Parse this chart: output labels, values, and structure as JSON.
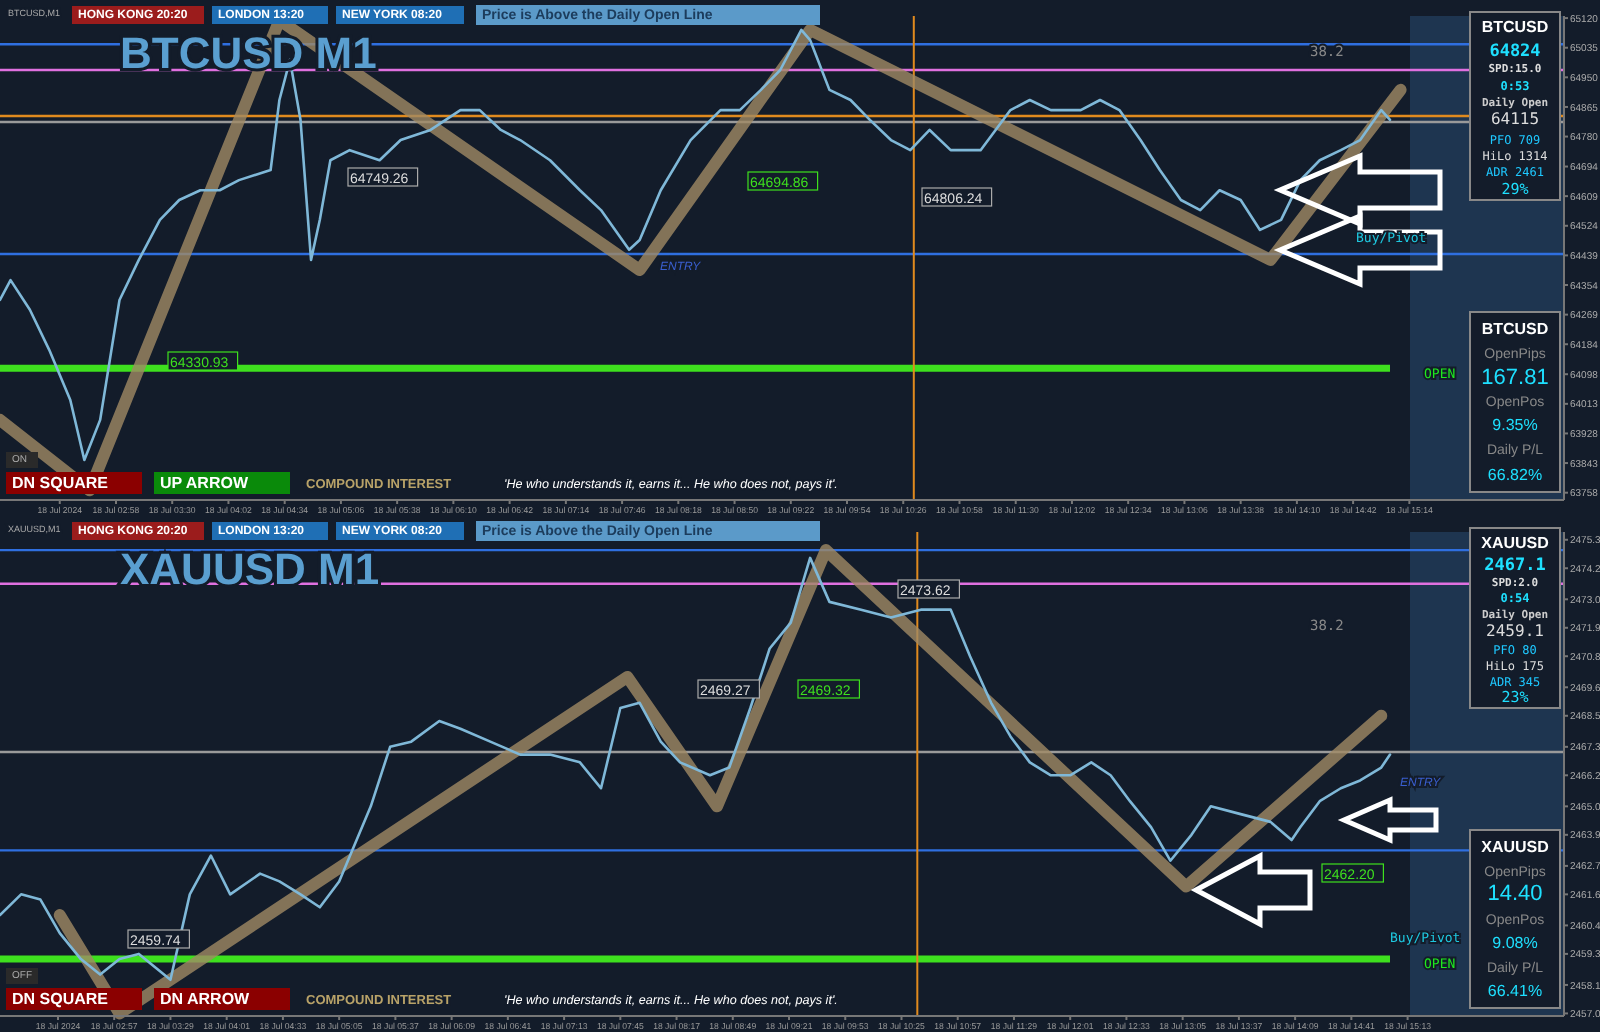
{
  "chart_data": [
    {
      "type": "line",
      "title": "BTCUSD M1",
      "xlim": [
        "2024-07-18T01:52",
        "2024-07-18T16:42"
      ],
      "xticks": [
        {
          "value": "2024-07-18T02:26",
          "label": "18 Jul 2024"
        },
        {
          "value": "2024-07-18T02:58",
          "label": "18 Jul 02:58"
        },
        {
          "value": "2024-07-18T03:30",
          "label": "18 Jul 03:30"
        },
        {
          "value": "2024-07-18T04:02",
          "label": "18 Jul 04:02"
        },
        {
          "value": "2024-07-18T04:34",
          "label": "18 Jul 04:34"
        },
        {
          "value": "2024-07-18T05:06",
          "label": "18 Jul 05:06"
        },
        {
          "value": "2024-07-18T05:38",
          "label": "18 Jul 05:38"
        },
        {
          "value": "2024-07-18T06:10",
          "label": "18 Jul 06:10"
        },
        {
          "value": "2024-07-18T06:42",
          "label": "18 Jul 06:42"
        },
        {
          "value": "2024-07-18T07:14",
          "label": "18 Jul 07:14"
        },
        {
          "value": "2024-07-18T07:46",
          "label": "18 Jul 07:46"
        },
        {
          "value": "2024-07-18T08:18",
          "label": "18 Jul 08:18"
        },
        {
          "value": "2024-07-18T08:50",
          "label": "18 Jul 08:50"
        },
        {
          "value": "2024-07-18T09:22",
          "label": "18 Jul 09:22"
        },
        {
          "value": "2024-07-18T09:54",
          "label": "18 Jul 09:54"
        },
        {
          "value": "2024-07-18T10:26",
          "label": "18 Jul 10:26"
        },
        {
          "value": "2024-07-18T10:58",
          "label": "18 Jul 10:58"
        },
        {
          "value": "2024-07-18T11:30",
          "label": "18 Jul 11:30"
        },
        {
          "value": "2024-07-18T12:02",
          "label": "18 Jul 12:02"
        },
        {
          "value": "2024-07-18T12:34",
          "label": "18 Jul 12:34"
        },
        {
          "value": "2024-07-18T13:06",
          "label": "18 Jul 13:06"
        },
        {
          "value": "2024-07-18T13:38",
          "label": "18 Jul 13:38"
        },
        {
          "value": "2024-07-18T14:10",
          "label": "18 Jul 14:10"
        },
        {
          "value": "2024-07-18T14:42",
          "label": "18 Jul 14:42"
        },
        {
          "value": "2024-07-18T15:14",
          "label": "18 Jul 15:14"
        }
      ],
      "ylim": [
        63737,
        65126
      ],
      "yticks": [
        63758,
        63843,
        63928,
        64013,
        64098,
        64184,
        64269,
        64354,
        64439,
        64524,
        64609,
        64694,
        64780,
        64865,
        64950,
        65035,
        65120
      ],
      "series": [
        {
          "color": "#a08a64",
          "x": [
            "2024-07-18T01:52",
            "2024-07-18T02:43",
            "2024-07-18T04:31",
            "2024-07-18T07:56",
            "2024-07-18T09:33",
            "2024-07-18T13:55",
            "2024-07-18T15:09"
          ],
          "values": [
            63967,
            63765,
            65114,
            64397,
            65086,
            64426,
            64914
          ]
        },
        {
          "color": "#7fb8d8",
          "x": [
            "2024-07-18T01:52",
            "2024-07-18T01:58",
            "2024-07-18T02:09",
            "2024-07-18T02:20",
            "2024-07-18T02:32",
            "2024-07-18T02:40",
            "2024-07-18T02:49",
            "2024-07-18T03:00",
            "2024-07-18T03:11",
            "2024-07-18T03:23",
            "2024-07-18T03:34",
            "2024-07-18T03:46",
            "2024-07-18T03:57",
            "2024-07-18T04:08",
            "2024-07-18T04:26",
            "2024-07-18T04:31",
            "2024-07-18T04:37",
            "2024-07-18T04:43",
            "2024-07-18T04:49",
            "2024-07-18T04:54",
            "2024-07-18T05:00",
            "2024-07-18T05:11",
            "2024-07-18T05:28",
            "2024-07-18T05:40",
            "2024-07-18T05:57",
            "2024-07-18T06:14",
            "2024-07-18T06:25",
            "2024-07-18T06:37",
            "2024-07-18T06:48",
            "2024-07-18T07:05",
            "2024-07-18T07:22",
            "2024-07-18T07:34",
            "2024-07-18T07:50",
            "2024-07-18T07:56",
            "2024-07-18T08:08",
            "2024-07-18T08:25",
            "2024-07-18T08:42",
            "2024-07-18T08:53",
            "2024-07-18T09:05",
            "2024-07-18T09:16",
            "2024-07-18T09:28",
            "2024-07-18T09:33",
            "2024-07-18T09:44",
            "2024-07-18T09:56",
            "2024-07-18T10:07",
            "2024-07-18T10:19",
            "2024-07-18T10:30",
            "2024-07-18T10:41",
            "2024-07-18T10:53",
            "2024-07-18T11:10",
            "2024-07-18T11:27",
            "2024-07-18T11:38",
            "2024-07-18T11:50",
            "2024-07-18T12:07",
            "2024-07-18T12:18",
            "2024-07-18T12:29",
            "2024-07-18T12:41",
            "2024-07-18T12:52",
            "2024-07-18T13:04",
            "2024-07-18T13:15",
            "2024-07-18T13:26",
            "2024-07-18T13:38",
            "2024-07-18T13:49",
            "2024-07-18T14:01",
            "2024-07-18T14:12",
            "2024-07-18T14:23",
            "2024-07-18T14:35",
            "2024-07-18T14:46",
            "2024-07-18T14:58",
            "2024-07-18T15:03"
          ],
          "values": [
            64311,
            64368,
            64283,
            64168,
            64024,
            63852,
            63967,
            64311,
            64426,
            64541,
            64598,
            64626,
            64626,
            64655,
            64684,
            64885,
            65000,
            64828,
            64426,
            64541,
            64712,
            64741,
            64712,
            64770,
            64799,
            64856,
            64856,
            64799,
            64770,
            64712,
            64626,
            64569,
            64455,
            64483,
            64626,
            64770,
            64856,
            64856,
            64914,
            64971,
            65086,
            65057,
            64914,
            64885,
            64828,
            64770,
            64741,
            64799,
            64741,
            64741,
            64856,
            64885,
            64856,
            64856,
            64885,
            64856,
            64770,
            64684,
            64598,
            64569,
            64626,
            64598,
            64512,
            64541,
            64655,
            64712,
            64741,
            64770,
            64856,
            64828
          ]
        }
      ],
      "ref_lines": [
        {
          "axis": "y",
          "value": 64115,
          "color": "#3ee01e"
        },
        {
          "axis": "y",
          "value": 64839,
          "color": "#e08a1e"
        },
        {
          "axis": "y",
          "value": 64822,
          "color": "#9a9a9a"
        },
        {
          "axis": "y",
          "value": 64971,
          "color": "#e070e0"
        },
        {
          "axis": "y",
          "value": 64443,
          "color": "#2f6fe0"
        },
        {
          "axis": "y",
          "value": 65045,
          "color": "#2f6fe0"
        },
        {
          "axis": "x",
          "value": "2024-07-18T10:32",
          "color": "#e08a1e"
        }
      ],
      "annotations": [
        "BTCUSD,M1",
        "HONG KONG 20:20",
        "LONDON 13:20",
        "NEW YORK 08:20",
        "Price is Above the Daily Open Line",
        "DN SQUARE",
        "UP ARROW",
        "COMPOUND INTEREST",
        "'He who understands it, earns it... He who does not, pays it'.",
        "ON",
        "ENTRY",
        "Buy/Pivot",
        "OPEN",
        "38.2",
        "BTCUSD",
        "64824",
        "SPD:15.0",
        "0:53",
        "Daily Open",
        "64115",
        "PFO  709",
        "HiLo 1314",
        "ADR 2461",
        "29%",
        "BTCUSD",
        "OpenPips",
        "167.81",
        "OpenPos",
        "9.35%",
        "Daily P/L",
        "66.82%",
        "64749.26",
        "64330.93",
        "64694.86",
        "64806.24"
      ]
    },
    {
      "type": "line",
      "title": "XAUUSD M1",
      "xlim": [
        "2024-07-18T01:52",
        "2024-07-18T16:42"
      ],
      "xticks": [
        {
          "value": "2024-07-18T02:25",
          "label": "18 Jul 2024"
        },
        {
          "value": "2024-07-18T02:57",
          "label": "18 Jul 02:57"
        },
        {
          "value": "2024-07-18T03:29",
          "label": "18 Jul 03:29"
        },
        {
          "value": "2024-07-18T04:01",
          "label": "18 Jul 04:01"
        },
        {
          "value": "2024-07-18T04:33",
          "label": "18 Jul 04:33"
        },
        {
          "value": "2024-07-18T05:05",
          "label": "18 Jul 05:05"
        },
        {
          "value": "2024-07-18T05:37",
          "label": "18 Jul 05:37"
        },
        {
          "value": "2024-07-18T06:09",
          "label": "18 Jul 06:09"
        },
        {
          "value": "2024-07-18T06:41",
          "label": "18 Jul 06:41"
        },
        {
          "value": "2024-07-18T07:13",
          "label": "18 Jul 07:13"
        },
        {
          "value": "2024-07-18T07:45",
          "label": "18 Jul 07:45"
        },
        {
          "value": "2024-07-18T08:17",
          "label": "18 Jul 08:17"
        },
        {
          "value": "2024-07-18T08:49",
          "label": "18 Jul 08:49"
        },
        {
          "value": "2024-07-18T09:21",
          "label": "18 Jul 09:21"
        },
        {
          "value": "2024-07-18T09:53",
          "label": "18 Jul 09:53"
        },
        {
          "value": "2024-07-18T10:25",
          "label": "18 Jul 10:25"
        },
        {
          "value": "2024-07-18T10:57",
          "label": "18 Jul 10:57"
        },
        {
          "value": "2024-07-18T11:29",
          "label": "18 Jul 11:29"
        },
        {
          "value": "2024-07-18T12:01",
          "label": "18 Jul 12:01"
        },
        {
          "value": "2024-07-18T12:33",
          "label": "18 Jul 12:33"
        },
        {
          "value": "2024-07-18T13:05",
          "label": "18 Jul 13:05"
        },
        {
          "value": "2024-07-18T13:37",
          "label": "18 Jul 13:37"
        },
        {
          "value": "2024-07-18T14:09",
          "label": "18 Jul 14:09"
        },
        {
          "value": "2024-07-18T14:41",
          "label": "18 Jul 14:41"
        },
        {
          "value": "2024-07-18T15:13",
          "label": "18 Jul 15:13"
        }
      ],
      "ylim": [
        2456.9,
        2475.6
      ],
      "yticks": [
        {
          "value": 2457,
          "label": "2457.0"
        },
        2458.1,
        2459.3,
        2460.4,
        2461.6,
        2462.7,
        2463.9,
        {
          "value": 2465,
          "label": "2465.0"
        },
        2466.2,
        2467.3,
        2468.5,
        2469.6,
        2470.8,
        2471.9,
        {
          "value": 2473,
          "label": "2473.0"
        },
        2474.2,
        2475.3
      ],
      "series": [
        {
          "color": "#a08a64",
          "x": [
            "2024-07-18T02:26",
            "2024-07-18T03:00",
            "2024-07-18T07:49",
            "2024-07-18T08:40",
            "2024-07-18T09:42",
            "2024-07-18T13:07",
            "2024-07-18T14:58"
          ],
          "values": [
            2460.8,
            2457.0,
            2470.0,
            2465.0,
            2474.9,
            2461.9,
            2468.5
          ]
        },
        {
          "color": "#7fb8d8",
          "x": [
            "2024-07-18T01:52",
            "2024-07-18T02:04",
            "2024-07-18T02:15",
            "2024-07-18T02:26",
            "2024-07-18T02:38",
            "2024-07-18T02:49",
            "2024-07-18T03:00",
            "2024-07-18T03:11",
            "2024-07-18T03:29",
            "2024-07-18T03:40",
            "2024-07-18T03:52",
            "2024-07-18T04:03",
            "2024-07-18T04:20",
            "2024-07-18T04:31",
            "2024-07-18T04:43",
            "2024-07-18T04:54",
            "2024-07-18T05:05",
            "2024-07-18T05:23",
            "2024-07-18T05:34",
            "2024-07-18T05:46",
            "2024-07-18T06:02",
            "2024-07-18T06:14",
            "2024-07-18T06:31",
            "2024-07-18T06:48",
            "2024-07-18T07:05",
            "2024-07-18T07:22",
            "2024-07-18T07:34",
            "2024-07-18T07:45",
            "2024-07-18T07:56",
            "2024-07-18T08:08",
            "2024-07-18T08:19",
            "2024-07-18T08:36",
            "2024-07-18T08:47",
            "2024-07-18T08:59",
            "2024-07-18T09:10",
            "2024-07-18T09:22",
            "2024-07-18T09:33",
            "2024-07-18T09:44",
            "2024-07-18T10:02",
            "2024-07-18T10:19",
            "2024-07-18T10:36",
            "2024-07-18T10:53",
            "2024-07-18T11:04",
            "2024-07-18T11:16",
            "2024-07-18T11:27",
            "2024-07-18T11:38",
            "2024-07-18T11:50",
            "2024-07-18T12:01",
            "2024-07-18T12:13",
            "2024-07-18T12:24",
            "2024-07-18T12:35",
            "2024-07-18T12:47",
            "2024-07-18T12:58",
            "2024-07-18T13:10",
            "2024-07-18T13:21",
            "2024-07-18T13:38",
            "2024-07-18T13:55",
            "2024-07-18T14:07",
            "2024-07-18T14:12",
            "2024-07-18T14:23",
            "2024-07-18T14:35",
            "2024-07-18T14:46",
            "2024-07-18T14:58",
            "2024-07-18T15:03"
          ],
          "values": [
            2460.8,
            2461.6,
            2461.4,
            2460.1,
            2459.1,
            2458.5,
            2459.1,
            2459.3,
            2458.3,
            2461.6,
            2463.1,
            2461.6,
            2462.4,
            2462.1,
            2461.6,
            2461.1,
            2462.1,
            2465.0,
            2467.3,
            2467.5,
            2468.3,
            2468.0,
            2467.5,
            2467.0,
            2467.0,
            2466.7,
            2465.7,
            2468.8,
            2469.0,
            2467.5,
            2466.7,
            2466.2,
            2466.5,
            2468.8,
            2471.1,
            2472.1,
            2474.6,
            2472.9,
            2472.6,
            2472.3,
            2472.6,
            2472.6,
            2470.8,
            2469.0,
            2467.7,
            2466.7,
            2466.2,
            2466.2,
            2466.7,
            2466.2,
            2465.2,
            2464.2,
            2462.9,
            2463.9,
            2465.0,
            2464.7,
            2464.4,
            2463.7,
            2464.2,
            2465.2,
            2465.7,
            2466.0,
            2466.5,
            2467.0
          ]
        }
      ],
      "ref_lines": [
        {
          "axis": "y",
          "value": 2459.1,
          "color": "#3ee01e"
        },
        {
          "axis": "y",
          "value": 2467.1,
          "color": "#9a9a9a"
        },
        {
          "axis": "y",
          "value": 2474.9,
          "color": "#2f6fe0"
        },
        {
          "axis": "y",
          "value": 2473.6,
          "color": "#e070e0"
        },
        {
          "axis": "y",
          "value": 2463.3,
          "color": "#2f6fe0"
        },
        {
          "axis": "x",
          "value": "2024-07-18T10:34",
          "color": "#e08a1e"
        }
      ],
      "annotations": [
        "XAUUSD,M1",
        "HONG KONG 20:20",
        "LONDON 13:20",
        "NEW YORK 08:20",
        "Price is Above the Daily Open Line",
        "DN SQUARE",
        "DN ARROW",
        "COMPOUND INTEREST",
        "'He who understands it, earns it... He who does not, pays it'.",
        "OFF",
        "ENTRY",
        "Buy/Pivot",
        "OPEN",
        "38.2",
        "XAUUSD",
        "2467.1",
        "SPD:2.0",
        "0:54",
        "Daily Open",
        "2459.1",
        "PFO  80",
        "HiLo 175",
        "ADR 345",
        "23%",
        "XAUUSD",
        "OpenPips",
        "14.40",
        "OpenPos",
        "9.08%",
        "Daily P/L",
        "66.41%",
        "2459.74",
        "2469.27",
        "2469.32",
        "2473.62",
        "2462.20"
      ]
    }
  ]
}
